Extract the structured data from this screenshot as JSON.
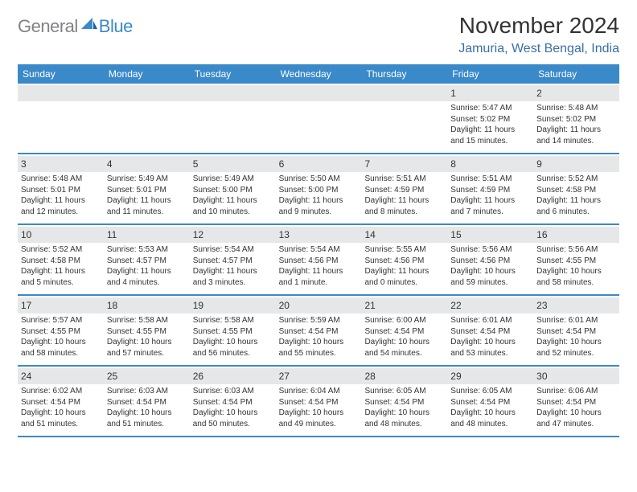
{
  "brand": {
    "part1": "General",
    "part2": "Blue"
  },
  "title": "November 2024",
  "location": "Jamuria, West Bengal, India",
  "colors": {
    "header_bg": "#3a89c9",
    "header_text": "#ffffff",
    "daynum_bg": "#e6e7e8",
    "rule": "#3a89c9",
    "brand_gray": "#808285",
    "brand_blue": "#3a89c9",
    "location_color": "#3a6ea5",
    "text": "#333333"
  },
  "dayHeaders": [
    "Sunday",
    "Monday",
    "Tuesday",
    "Wednesday",
    "Thursday",
    "Friday",
    "Saturday"
  ],
  "weeks": [
    [
      {
        "empty": true
      },
      {
        "empty": true
      },
      {
        "empty": true
      },
      {
        "empty": true
      },
      {
        "empty": true
      },
      {
        "num": "1",
        "sunrise": "Sunrise: 5:47 AM",
        "sunset": "Sunset: 5:02 PM",
        "daylight": "Daylight: 11 hours and 15 minutes."
      },
      {
        "num": "2",
        "sunrise": "Sunrise: 5:48 AM",
        "sunset": "Sunset: 5:02 PM",
        "daylight": "Daylight: 11 hours and 14 minutes."
      }
    ],
    [
      {
        "num": "3",
        "sunrise": "Sunrise: 5:48 AM",
        "sunset": "Sunset: 5:01 PM",
        "daylight": "Daylight: 11 hours and 12 minutes."
      },
      {
        "num": "4",
        "sunrise": "Sunrise: 5:49 AM",
        "sunset": "Sunset: 5:01 PM",
        "daylight": "Daylight: 11 hours and 11 minutes."
      },
      {
        "num": "5",
        "sunrise": "Sunrise: 5:49 AM",
        "sunset": "Sunset: 5:00 PM",
        "daylight": "Daylight: 11 hours and 10 minutes."
      },
      {
        "num": "6",
        "sunrise": "Sunrise: 5:50 AM",
        "sunset": "Sunset: 5:00 PM",
        "daylight": "Daylight: 11 hours and 9 minutes."
      },
      {
        "num": "7",
        "sunrise": "Sunrise: 5:51 AM",
        "sunset": "Sunset: 4:59 PM",
        "daylight": "Daylight: 11 hours and 8 minutes."
      },
      {
        "num": "8",
        "sunrise": "Sunrise: 5:51 AM",
        "sunset": "Sunset: 4:59 PM",
        "daylight": "Daylight: 11 hours and 7 minutes."
      },
      {
        "num": "9",
        "sunrise": "Sunrise: 5:52 AM",
        "sunset": "Sunset: 4:58 PM",
        "daylight": "Daylight: 11 hours and 6 minutes."
      }
    ],
    [
      {
        "num": "10",
        "sunrise": "Sunrise: 5:52 AM",
        "sunset": "Sunset: 4:58 PM",
        "daylight": "Daylight: 11 hours and 5 minutes."
      },
      {
        "num": "11",
        "sunrise": "Sunrise: 5:53 AM",
        "sunset": "Sunset: 4:57 PM",
        "daylight": "Daylight: 11 hours and 4 minutes."
      },
      {
        "num": "12",
        "sunrise": "Sunrise: 5:54 AM",
        "sunset": "Sunset: 4:57 PM",
        "daylight": "Daylight: 11 hours and 3 minutes."
      },
      {
        "num": "13",
        "sunrise": "Sunrise: 5:54 AM",
        "sunset": "Sunset: 4:56 PM",
        "daylight": "Daylight: 11 hours and 1 minute."
      },
      {
        "num": "14",
        "sunrise": "Sunrise: 5:55 AM",
        "sunset": "Sunset: 4:56 PM",
        "daylight": "Daylight: 11 hours and 0 minutes."
      },
      {
        "num": "15",
        "sunrise": "Sunrise: 5:56 AM",
        "sunset": "Sunset: 4:56 PM",
        "daylight": "Daylight: 10 hours and 59 minutes."
      },
      {
        "num": "16",
        "sunrise": "Sunrise: 5:56 AM",
        "sunset": "Sunset: 4:55 PM",
        "daylight": "Daylight: 10 hours and 58 minutes."
      }
    ],
    [
      {
        "num": "17",
        "sunrise": "Sunrise: 5:57 AM",
        "sunset": "Sunset: 4:55 PM",
        "daylight": "Daylight: 10 hours and 58 minutes."
      },
      {
        "num": "18",
        "sunrise": "Sunrise: 5:58 AM",
        "sunset": "Sunset: 4:55 PM",
        "daylight": "Daylight: 10 hours and 57 minutes."
      },
      {
        "num": "19",
        "sunrise": "Sunrise: 5:58 AM",
        "sunset": "Sunset: 4:55 PM",
        "daylight": "Daylight: 10 hours and 56 minutes."
      },
      {
        "num": "20",
        "sunrise": "Sunrise: 5:59 AM",
        "sunset": "Sunset: 4:54 PM",
        "daylight": "Daylight: 10 hours and 55 minutes."
      },
      {
        "num": "21",
        "sunrise": "Sunrise: 6:00 AM",
        "sunset": "Sunset: 4:54 PM",
        "daylight": "Daylight: 10 hours and 54 minutes."
      },
      {
        "num": "22",
        "sunrise": "Sunrise: 6:01 AM",
        "sunset": "Sunset: 4:54 PM",
        "daylight": "Daylight: 10 hours and 53 minutes."
      },
      {
        "num": "23",
        "sunrise": "Sunrise: 6:01 AM",
        "sunset": "Sunset: 4:54 PM",
        "daylight": "Daylight: 10 hours and 52 minutes."
      }
    ],
    [
      {
        "num": "24",
        "sunrise": "Sunrise: 6:02 AM",
        "sunset": "Sunset: 4:54 PM",
        "daylight": "Daylight: 10 hours and 51 minutes."
      },
      {
        "num": "25",
        "sunrise": "Sunrise: 6:03 AM",
        "sunset": "Sunset: 4:54 PM",
        "daylight": "Daylight: 10 hours and 51 minutes."
      },
      {
        "num": "26",
        "sunrise": "Sunrise: 6:03 AM",
        "sunset": "Sunset: 4:54 PM",
        "daylight": "Daylight: 10 hours and 50 minutes."
      },
      {
        "num": "27",
        "sunrise": "Sunrise: 6:04 AM",
        "sunset": "Sunset: 4:54 PM",
        "daylight": "Daylight: 10 hours and 49 minutes."
      },
      {
        "num": "28",
        "sunrise": "Sunrise: 6:05 AM",
        "sunset": "Sunset: 4:54 PM",
        "daylight": "Daylight: 10 hours and 48 minutes."
      },
      {
        "num": "29",
        "sunrise": "Sunrise: 6:05 AM",
        "sunset": "Sunset: 4:54 PM",
        "daylight": "Daylight: 10 hours and 48 minutes."
      },
      {
        "num": "30",
        "sunrise": "Sunrise: 6:06 AM",
        "sunset": "Sunset: 4:54 PM",
        "daylight": "Daylight: 10 hours and 47 minutes."
      }
    ]
  ]
}
